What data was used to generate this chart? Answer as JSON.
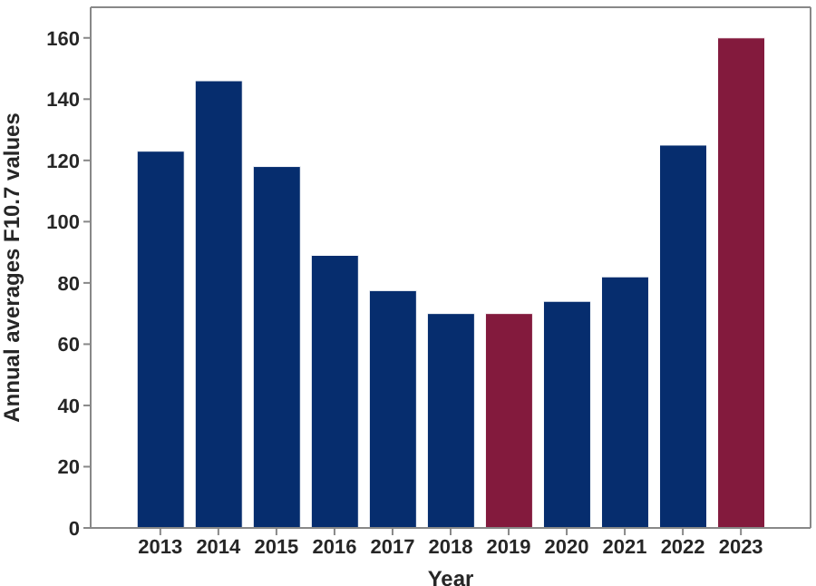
{
  "chart_data": {
    "type": "bar",
    "xlabel": "Year",
    "ylabel": "Annual averages F10.7 values",
    "categories": [
      "2013",
      "2014",
      "2015",
      "2016",
      "2017",
      "2018",
      "2019",
      "2020",
      "2021",
      "2022",
      "2023"
    ],
    "values": [
      123,
      146,
      118,
      89,
      77.5,
      70,
      70,
      74,
      82,
      125,
      160
    ],
    "colors": [
      "#062d6e",
      "#062d6e",
      "#062d6e",
      "#062d6e",
      "#062d6e",
      "#062d6e",
      "#831a3d",
      "#062d6e",
      "#062d6e",
      "#062d6e",
      "#831a3d"
    ],
    "ylim": [
      0,
      170
    ],
    "yticks": [
      0,
      20,
      40,
      60,
      80,
      100,
      120,
      140,
      160
    ],
    "grid": false
  }
}
